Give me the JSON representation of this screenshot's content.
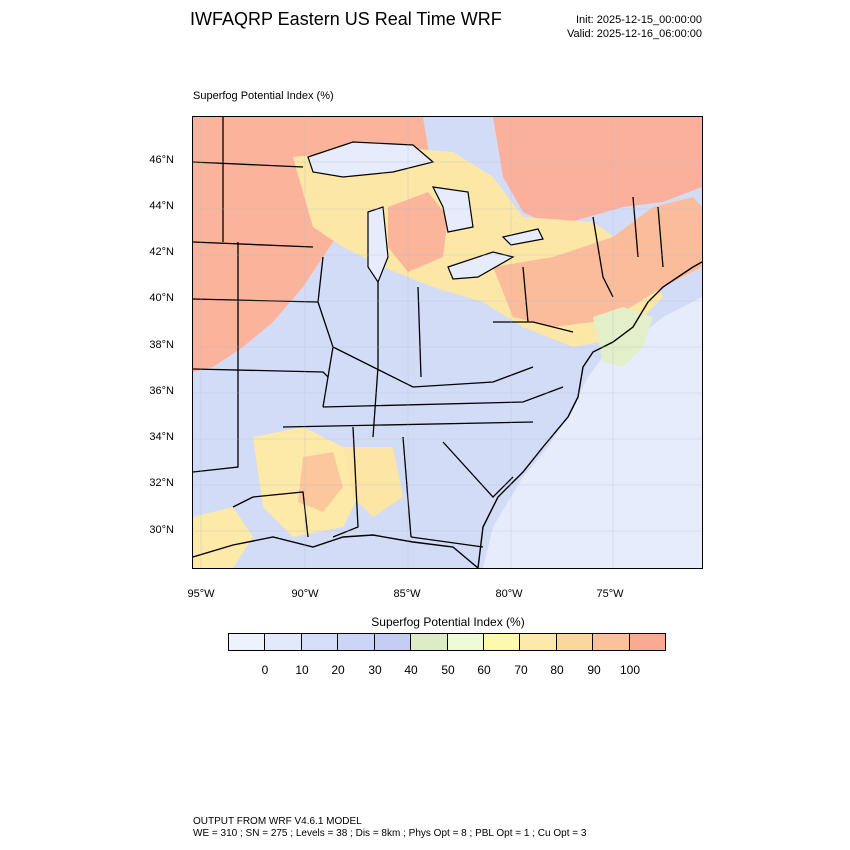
{
  "header": {
    "title": "IWFAQRP Eastern US Real Time WRF",
    "init": "Init: 2025-12-15_00:00:00",
    "valid": "Valid: 2025-12-16_06:00:00"
  },
  "map": {
    "field_title": "Superfog Potential Index   (%)",
    "lat_labels": [
      "46°N",
      "44°N",
      "42°N",
      "40°N",
      "38°N",
      "36°N",
      "34°N",
      "32°N",
      "30°N"
    ],
    "lon_labels": [
      "95°W",
      "90°W",
      "85°W",
      "80°W",
      "75°W"
    ]
  },
  "colorbar": {
    "title": "Superfog Potential Index  (%)",
    "labels": [
      "0",
      "10",
      "20",
      "30",
      "40",
      "50",
      "60",
      "70",
      "80",
      "90",
      "100"
    ],
    "colors": [
      "#eef2fc",
      "#e2e9fb",
      "#d4def8",
      "#cbd5f5",
      "#c4cdf2",
      "#dcecc6",
      "#eefbd9",
      "#fdfbab",
      "#fde9a8",
      "#fcd79b",
      "#fcc19a",
      "#fba993"
    ]
  },
  "footer": {
    "line1": "OUTPUT FROM WRF V4.6.1 MODEL",
    "line2": "WE = 310 ; SN = 275 ; Levels = 38 ; Dis = 8km ; Phys Opt = 8 ; PBL Opt = 1 ; Cu Opt = 3"
  }
}
